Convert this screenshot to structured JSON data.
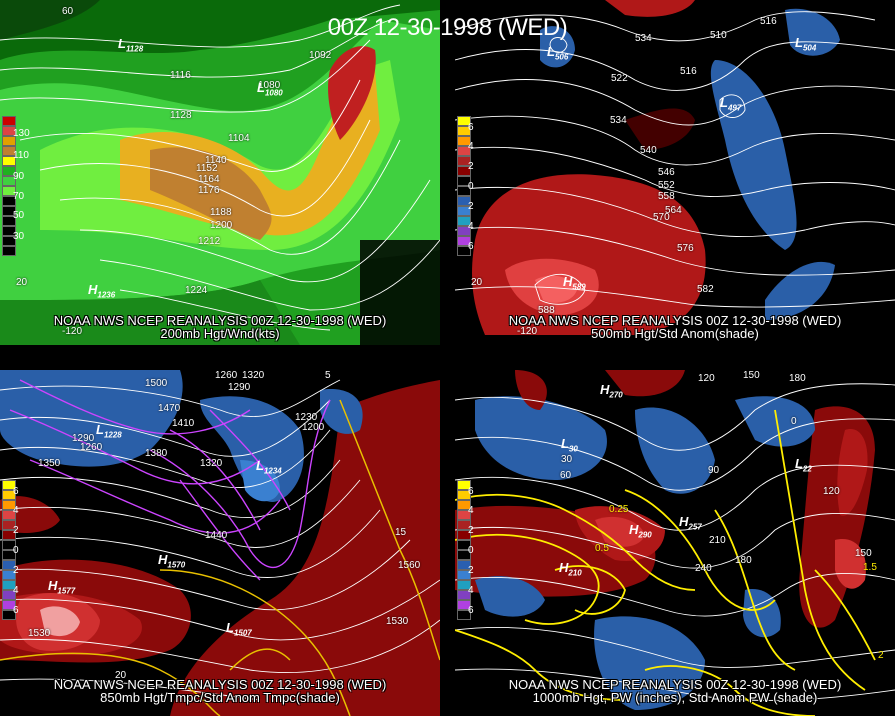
{
  "title": "00Z 12-30-1998 (WED)",
  "panels": [
    {
      "source": "NOAA NWS NCEP REANALYSIS 00Z 12-30-1998 (WED)",
      "caption": "200mb Hgt/Wnd(kts)",
      "scale_labels": [
        "130",
        "110",
        "90",
        "70",
        "50",
        "30"
      ],
      "contour_labels": [
        "1128",
        "1116",
        "1104",
        "1092",
        "1080",
        "1128",
        "1140",
        "1152",
        "1164",
        "1176",
        "1188",
        "1200",
        "1212",
        "1224",
        "60",
        "-120",
        "20"
      ],
      "pressure_centers": [
        {
          "type": "L",
          "value": "1128"
        },
        {
          "type": "L",
          "value": "1080"
        },
        {
          "type": "H",
          "value": "1236"
        }
      ]
    },
    {
      "source": "NOAA NWS NCEP REANALYSIS 00Z 12-30-1998 (WED)",
      "caption": "500mb Hgt/Std Anom(shade)",
      "scale_labels": [
        "6",
        "5",
        "4",
        "3",
        "2",
        "1",
        "0",
        "1",
        "2",
        "3",
        "4",
        "5",
        "6"
      ],
      "contour_labels": [
        "534",
        "516",
        "510",
        "516",
        "522",
        "534",
        "540",
        "546",
        "552",
        "558",
        "564",
        "570",
        "576",
        "582",
        "588",
        "504",
        "-120",
        "20"
      ],
      "pressure_centers": [
        {
          "type": "L",
          "value": "506"
        },
        {
          "type": "L",
          "value": "504"
        },
        {
          "type": "L",
          "value": "497"
        },
        {
          "type": "H",
          "value": "589"
        }
      ]
    },
    {
      "source": "NOAA NWS NCEP REANALYSIS 00Z 12-30-1998 (WED)",
      "caption": "850mb Hgt/Tmpc/Std Anom Tmpc(shade)",
      "scale_labels": [
        "6",
        "5",
        "4",
        "3",
        "2",
        "1",
        "0",
        "1",
        "2",
        "3",
        "4",
        "5",
        "6"
      ],
      "contour_labels": [
        "1500",
        "1260",
        "1320",
        "1290",
        "1470",
        "1410",
        "1380",
        "1350",
        "1320",
        "1440",
        "1560",
        "1530",
        "1290",
        "1260",
        "1230",
        "1200",
        "-5",
        "-10",
        "-15",
        "-20",
        "-25",
        "5",
        "15",
        "20",
        "1560",
        "1530",
        "1530"
      ],
      "pressure_centers": [
        {
          "type": "L",
          "value": "1228"
        },
        {
          "type": "L",
          "value": "1234"
        },
        {
          "type": "H",
          "value": "1577"
        },
        {
          "type": "H",
          "value": "1570"
        },
        {
          "type": "L",
          "value": "1507"
        }
      ]
    },
    {
      "source": "NOAA NWS NCEP REANALYSIS 00Z 12-30-1998 (WED)",
      "caption": "1000mb Hgt, PW (inches), Std Anom PW (shade)",
      "scale_labels": [
        "6",
        "5",
        "4",
        "3",
        "2",
        "1",
        "0",
        "1",
        "2",
        "3",
        "4",
        "5",
        "6"
      ],
      "contour_labels": [
        "150",
        "180",
        "120",
        "90",
        "60",
        "30",
        "0",
        "90",
        "120",
        "150",
        "180",
        "210",
        "240",
        "270",
        "0.25",
        "0.5",
        "1.5",
        "2",
        "1"
      ],
      "pressure_centers": [
        {
          "type": "H",
          "value": "270"
        },
        {
          "type": "L",
          "value": "30"
        },
        {
          "type": "H",
          "value": "290"
        },
        {
          "type": "H",
          "value": "257"
        },
        {
          "type": "H",
          "value": "210"
        },
        {
          "type": "L",
          "value": "22"
        }
      ]
    }
  ],
  "colors": {
    "wind_scale": [
      "#cc0000",
      "#e0a000",
      "#c08030",
      "#20b020",
      "#40d040",
      "#80ff40"
    ],
    "anom_scale": [
      "#ffff00",
      "#ffcc00",
      "#ff9900",
      "#dd4444",
      "#aa2222",
      "#880000",
      "#000000",
      "#000000",
      "#2a5fb0",
      "#3a80d0",
      "#20a0c0",
      "#8040c0",
      "#b040e0"
    ],
    "positive_anom": "#b01818",
    "negative_anom": "#2a5fa8",
    "contour": "#ffffff",
    "temp_contour": "#cc44ff",
    "pw_contour": "#ffee00"
  }
}
